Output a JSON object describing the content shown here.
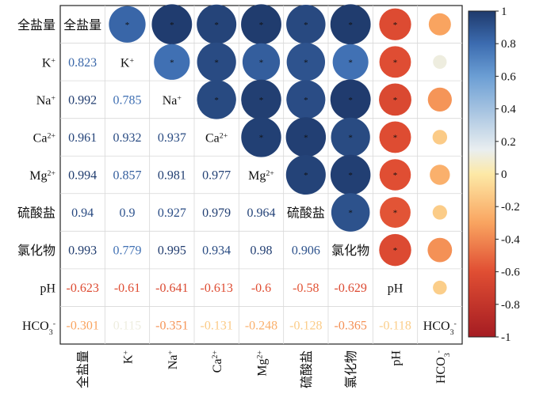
{
  "chart_data": {
    "type": "heatmap",
    "subtype": "correlation-matrix",
    "variables": [
      "全盐量",
      "K⁺",
      "Na⁺",
      "Ca²⁺",
      "Mg²⁺",
      "硫酸盐",
      "氯化物",
      "pH",
      "HCO₃⁻"
    ],
    "matrix": [
      [
        1,
        0.823,
        0.992,
        0.961,
        0.994,
        0.94,
        0.993,
        -0.623,
        -0.301
      ],
      [
        0.823,
        1,
        0.785,
        0.932,
        0.857,
        0.9,
        0.779,
        -0.61,
        0.115
      ],
      [
        0.992,
        0.785,
        1,
        0.937,
        0.981,
        0.927,
        0.995,
        -0.641,
        -0.351
      ],
      [
        0.961,
        0.932,
        0.937,
        1,
        0.977,
        0.979,
        0.934,
        -0.613,
        -0.131
      ],
      [
        0.994,
        0.857,
        0.981,
        0.977,
        1,
        0.964,
        0.98,
        -0.6,
        -0.248
      ],
      [
        0.94,
        0.9,
        0.927,
        0.979,
        0.964,
        1,
        0.906,
        -0.58,
        -0.128
      ],
      [
        0.993,
        0.779,
        0.995,
        0.934,
        0.98,
        0.906,
        1,
        -0.629,
        -0.365
      ],
      [
        -0.623,
        -0.61,
        -0.641,
        -0.613,
        -0.6,
        -0.58,
        -0.629,
        1,
        -0.118
      ],
      [
        -0.301,
        0.115,
        -0.351,
        -0.131,
        -0.248,
        -0.128,
        -0.365,
        -0.118,
        1
      ]
    ],
    "upper_triangle": "circles",
    "lower_triangle": "numbers",
    "diagonal": "variable names",
    "significance_marker": "*",
    "significant_upper_columns": [
      1,
      2,
      3,
      4,
      5,
      6,
      7
    ],
    "colorbar": {
      "ticks": [
        "1",
        "0.8",
        "0.6",
        "0.4",
        "0.2",
        "0",
        "-0.2",
        "-0.4",
        "-0.6",
        "-0.8",
        "-1"
      ],
      "range": [
        -1,
        1
      ],
      "placement": "right"
    },
    "colorscale": [
      {
        "v": -1.0,
        "c": "#a51c22"
      },
      {
        "v": -0.6,
        "c": "#e04e33"
      },
      {
        "v": -0.3,
        "c": "#f9a460"
      },
      {
        "v": 0.0,
        "c": "#fde9a6"
      },
      {
        "v": 0.15,
        "c": "#e9eef0"
      },
      {
        "v": 0.6,
        "c": "#6b9ed4"
      },
      {
        "v": 0.8,
        "c": "#3c6cb0"
      },
      {
        "v": 1.0,
        "c": "#1f3a6c"
      }
    ],
    "grid": true,
    "legend": "none"
  }
}
